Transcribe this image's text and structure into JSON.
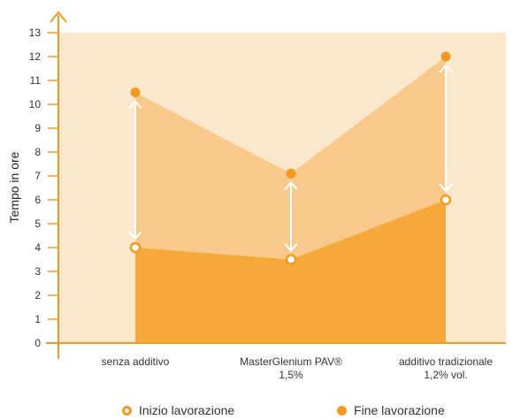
{
  "chart_data": {
    "type": "area",
    "title": "",
    "xlabel": "",
    "ylabel": "Tempo in ore",
    "ylim": [
      0,
      13
    ],
    "yticks": [
      0,
      1,
      2,
      3,
      4,
      5,
      6,
      7,
      8,
      9,
      10,
      11,
      12,
      13
    ],
    "categories": [
      [
        "senza additivo"
      ],
      [
        "MasterGlenium PAV®",
        "1,5%"
      ],
      [
        "additivo tradizionale",
        "1,2% vol."
      ]
    ],
    "series": [
      {
        "name": "Inizio lavorazione",
        "values": [
          4,
          3.5,
          6
        ]
      },
      {
        "name": "Fine lavorazione",
        "values": [
          10.5,
          7.1,
          12
        ]
      }
    ],
    "grid": false,
    "legend": "bottom",
    "colors": {
      "accent": "#f39a1e",
      "upper_fill": "#f8c98a",
      "lower_fill": "#f6a83a",
      "background": "#fbe8cc",
      "arrow": "#ffffff",
      "axis": "#f39a1e"
    }
  },
  "legend": {
    "start_label": "Inizio lavorazione",
    "end_label": "Fine lavorazione"
  }
}
